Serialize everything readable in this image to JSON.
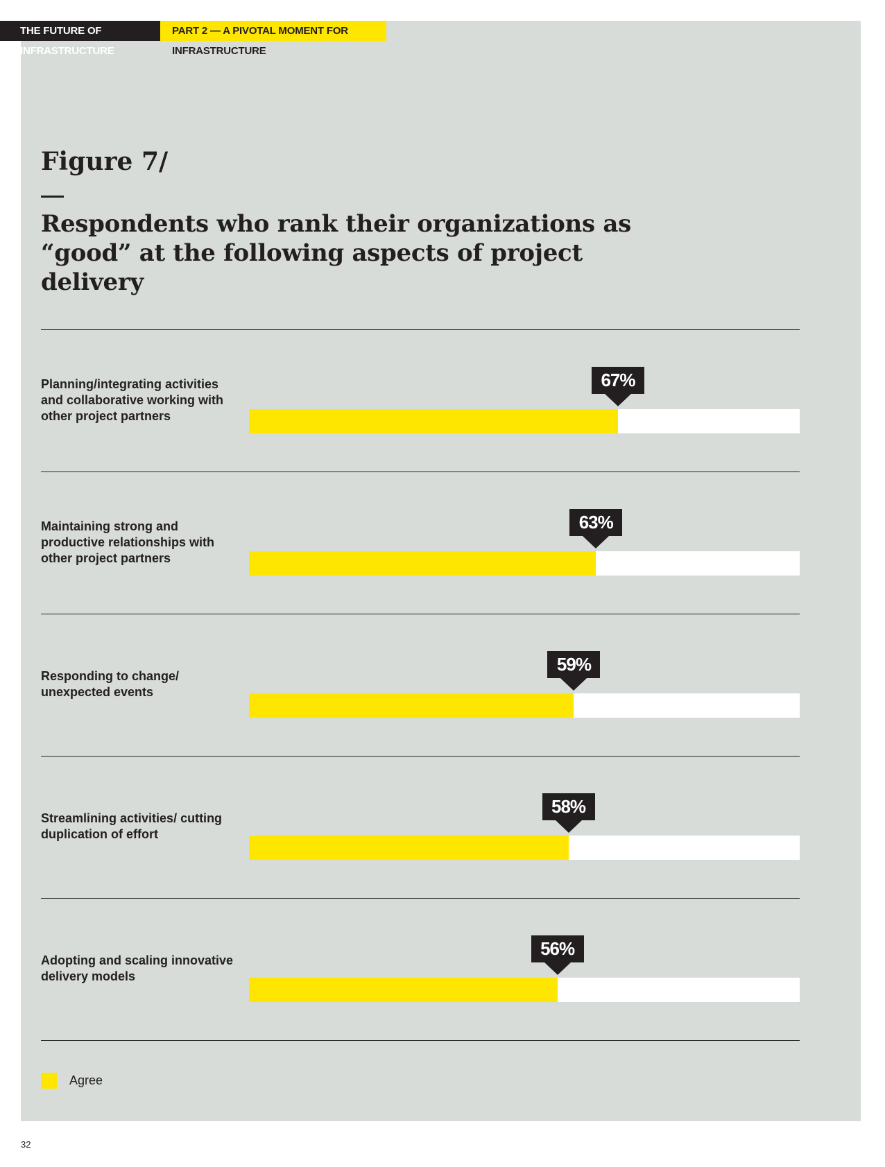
{
  "header": {
    "doc_title": "THE FUTURE OF INFRASTRUCTURE",
    "section": "PART 2 — A PIVOTAL MOMENT FOR INFRASTRUCTURE"
  },
  "figure": {
    "label": "Figure 7/",
    "dash": "—",
    "title": "Respondents who rank their organizations as “good” at the following aspects of project delivery"
  },
  "colors": {
    "panel": "#d8dcd9",
    "agree": "#ffe600",
    "track": "#ffffff",
    "ink": "#231f20"
  },
  "chart_data": {
    "type": "bar",
    "orientation": "horizontal",
    "title": "Respondents who rank their organizations as “good” at the following aspects of project delivery",
    "categories": [
      "Planning/integrating activities and collaborative working with other project partners",
      "Maintaining strong and productive relationships with other project partners",
      "Responding to change/ unexpected events",
      "Streamlining activities/ cutting duplication of effort",
      "Adopting and scaling innovative delivery models"
    ],
    "series": [
      {
        "name": "Agree",
        "values": [
          67,
          63,
          59,
          58,
          56
        ]
      }
    ],
    "value_labels": [
      "67%",
      "63%",
      "59%",
      "58%",
      "56%"
    ],
    "xlim": [
      0,
      100
    ],
    "unit": "%",
    "legend": "bottom-left"
  },
  "legend": {
    "label": "Agree"
  },
  "page_number": "32"
}
